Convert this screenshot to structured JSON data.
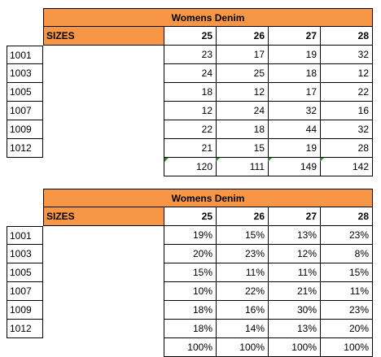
{
  "counts_table": {
    "title": "Womens Denim",
    "sizes_label": "SIZES",
    "columns": [
      "25",
      "26",
      "27",
      "28"
    ],
    "rows": [
      {
        "label": "1001",
        "values": [
          "23",
          "17",
          "19",
          "32"
        ]
      },
      {
        "label": "1003",
        "values": [
          "24",
          "25",
          "18",
          "12"
        ]
      },
      {
        "label": "1005",
        "values": [
          "18",
          "12",
          "17",
          "22"
        ]
      },
      {
        "label": "1007",
        "values": [
          "12",
          "24",
          "32",
          "16"
        ]
      },
      {
        "label": "1009",
        "values": [
          "22",
          "18",
          "44",
          "32"
        ]
      },
      {
        "label": "1012",
        "values": [
          "21",
          "15",
          "19",
          "28"
        ]
      }
    ],
    "totals": [
      "120",
      "111",
      "149",
      "142"
    ]
  },
  "percent_table": {
    "title": "Womens Denim",
    "sizes_label": "SIZES",
    "columns": [
      "25",
      "26",
      "27",
      "28"
    ],
    "rows": [
      {
        "label": "1001",
        "values": [
          "19%",
          "15%",
          "13%",
          "23%"
        ]
      },
      {
        "label": "1003",
        "values": [
          "20%",
          "23%",
          "12%",
          "8%"
        ]
      },
      {
        "label": "1005",
        "values": [
          "15%",
          "11%",
          "11%",
          "15%"
        ]
      },
      {
        "label": "1007",
        "values": [
          "10%",
          "22%",
          "21%",
          "11%"
        ]
      },
      {
        "label": "1009",
        "values": [
          "18%",
          "16%",
          "30%",
          "23%"
        ]
      },
      {
        "label": "1012",
        "values": [
          "18%",
          "14%",
          "13%",
          "20%"
        ]
      }
    ],
    "totals": [
      "100%",
      "100%",
      "100%",
      "100%"
    ]
  },
  "colors": {
    "header_fill": "#f79646",
    "error_marker": "#2e8b2e"
  }
}
